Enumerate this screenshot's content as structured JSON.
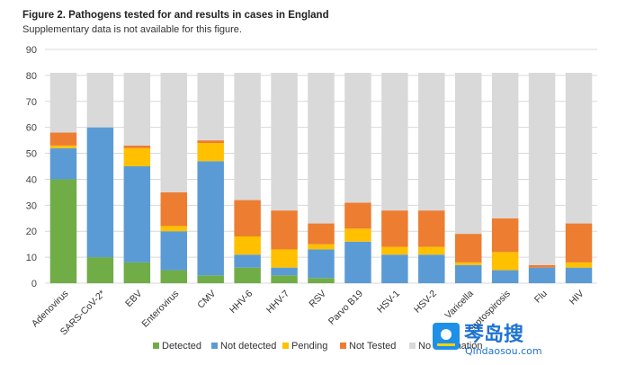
{
  "header": {
    "title": "Figure 2. Pathogens tested for and results in cases in England",
    "subtitle": "Supplementary data is not available for this figure."
  },
  "colors": {
    "detected": "#70ad47",
    "not_detected": "#5b9bd5",
    "pending": "#ffc000",
    "not_tested": "#ed7d31",
    "no_information": "#d9d9d9"
  },
  "watermark": {
    "text": "琴岛搜",
    "url": "Qindaosou.com"
  },
  "chart_data": {
    "type": "bar",
    "stacked": true,
    "title": "Figure 2. Pathogens tested for and results in cases in England",
    "xlabel": "",
    "ylabel": "",
    "ylim": [
      0,
      90
    ],
    "yticks": [
      0,
      10,
      20,
      30,
      40,
      50,
      60,
      70,
      80,
      90
    ],
    "grid": true,
    "legend_position": "bottom",
    "categories": [
      "Adenovirus",
      "SARS-CoV-2*",
      "EBV",
      "Enterovirus",
      "CMV",
      "HHV-6",
      "HHV-7",
      "RSV",
      "Parvo B19",
      "HSV-1",
      "HSV-2",
      "Varicella",
      "Leptospirosis",
      "Flu",
      "HIV"
    ],
    "series": [
      {
        "name": "Detected",
        "values": [
          40,
          10,
          8,
          5,
          3,
          6,
          3,
          2,
          0,
          0,
          0,
          0,
          0,
          0,
          0
        ]
      },
      {
        "name": "Not detected",
        "values": [
          12,
          50,
          37,
          15,
          44,
          5,
          3,
          11,
          16,
          11,
          11,
          7,
          5,
          6,
          6
        ]
      },
      {
        "name": "Pending",
        "values": [
          1,
          0,
          7,
          2,
          7,
          7,
          7,
          2,
          5,
          3,
          3,
          1,
          7,
          0,
          2
        ]
      },
      {
        "name": "Not Tested",
        "values": [
          5,
          0,
          1,
          13,
          1,
          14,
          15,
          8,
          10,
          14,
          14,
          11,
          13,
          1,
          15
        ]
      },
      {
        "name": "No information",
        "values": [
          23,
          21,
          28,
          46,
          26,
          49,
          53,
          58,
          50,
          53,
          53,
          62,
          56,
          74,
          58
        ]
      }
    ]
  }
}
